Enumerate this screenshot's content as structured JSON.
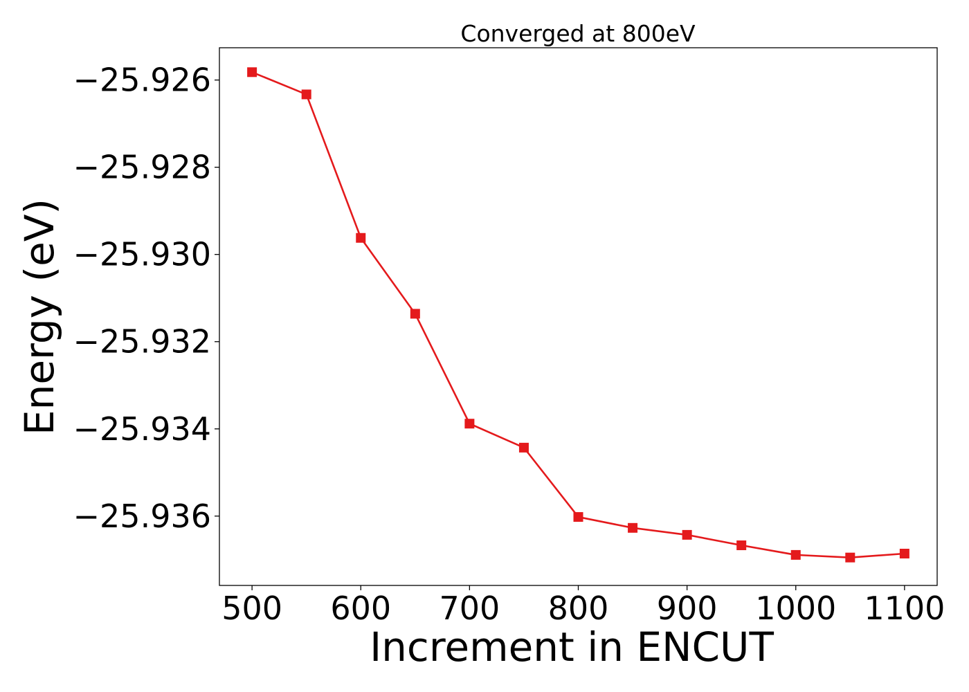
{
  "chart_data": {
    "type": "line",
    "title": "Converged at 800eV",
    "xlabel": "Increment in ENCUT",
    "ylabel": "Energy (eV)",
    "x": [
      500,
      550,
      600,
      650,
      700,
      750,
      800,
      850,
      900,
      950,
      1000,
      1050,
      1100
    ],
    "series": [
      {
        "values": [
          -25.92582,
          -25.92633,
          -25.92962,
          -25.93136,
          -25.93388,
          -25.93443,
          -25.93602,
          -25.93627,
          -25.93643,
          -25.93667,
          -25.93689,
          -25.93695,
          -25.93686
        ],
        "color": "#e41a1c",
        "marker": "square"
      }
    ],
    "xlim": [
      470,
      1130
    ],
    "ylim": [
      -25.93759,
      -25.92526
    ],
    "xticks": [
      500,
      600,
      700,
      800,
      900,
      1000,
      1100
    ],
    "xtick_labels": [
      "500",
      "600",
      "700",
      "800",
      "900",
      "1000",
      "1100"
    ],
    "yticks": [
      -25.926,
      -25.928,
      -25.93,
      -25.932,
      -25.934,
      -25.936
    ],
    "ytick_labels": [
      "−25.926",
      "−25.928",
      "−25.930",
      "−25.932",
      "−25.934",
      "−25.936"
    ],
    "grid": false,
    "legend": "none"
  }
}
